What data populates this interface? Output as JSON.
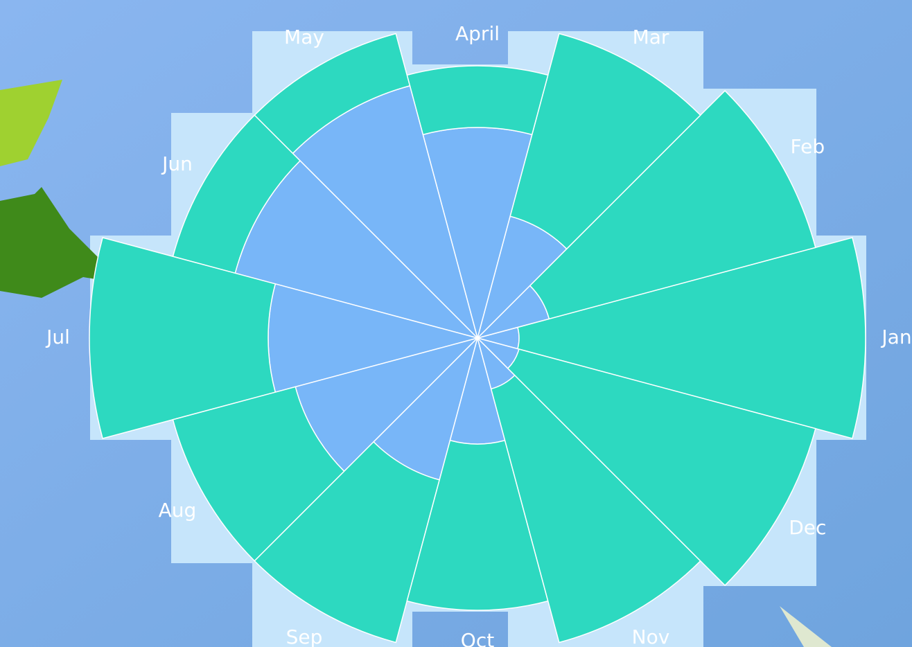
{
  "chart_data": {
    "type": "rose",
    "categories": [
      "Jan",
      "Feb",
      "Mar",
      "April",
      "May",
      "Jun",
      "Jul",
      "Aug",
      "Sep",
      "Oct",
      "Nov",
      "Dec"
    ],
    "series": [
      {
        "color": "#78b6f8",
        "values": [
          60,
          107,
          182,
          304,
          377,
          362,
          302,
          272,
          212,
          153,
          76,
          62
        ]
      },
      {
        "color": "#2dd9c0",
        "values": [
          500,
          398,
          273,
          89,
          78,
          93,
          258,
          183,
          243,
          240,
          379,
          443
        ]
      }
    ],
    "rlim": [
      0,
      560
    ]
  }
}
